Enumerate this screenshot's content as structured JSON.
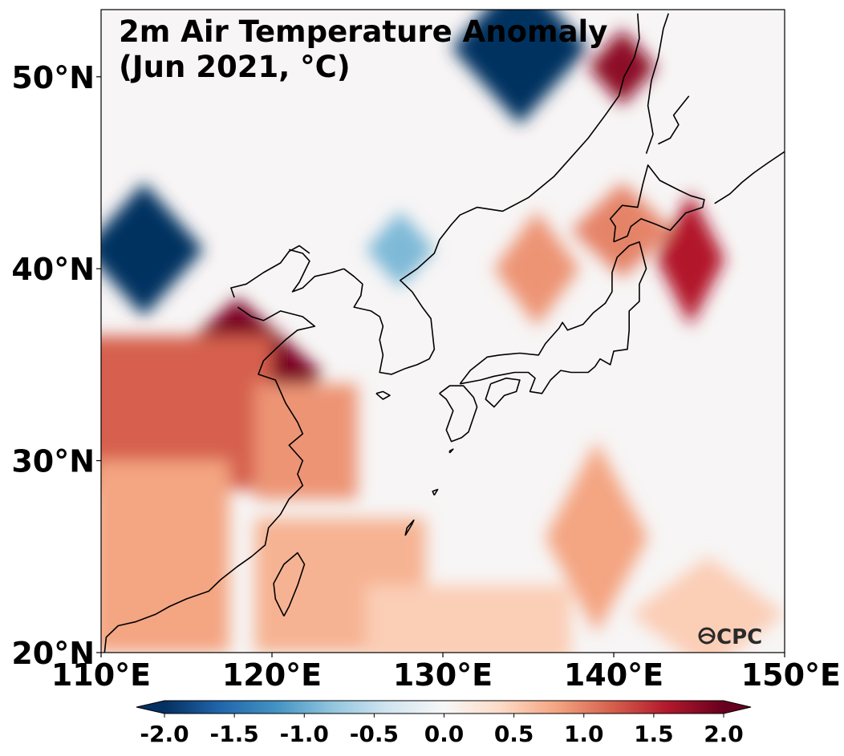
{
  "map": {
    "title_lines": [
      "2m Air Temperature Anomaly",
      "(Jun 2021, °C)"
    ],
    "logo": "CPC",
    "extent": {
      "lon": [
        110,
        150
      ],
      "lat": [
        20,
        53.5
      ]
    },
    "lat_ticks": [
      {
        "value": 20,
        "label": "20°N"
      },
      {
        "value": 30,
        "label": "30°N"
      },
      {
        "value": 40,
        "label": "40°N"
      },
      {
        "value": 50,
        "label": "50°N"
      }
    ],
    "lon_ticks": [
      {
        "value": 110,
        "label": "110°E"
      },
      {
        "value": 120,
        "label": "120°E"
      },
      {
        "value": 130,
        "label": "130°E"
      },
      {
        "value": 140,
        "label": "140°E"
      },
      {
        "value": 150,
        "label": "150°E"
      }
    ],
    "colorbar": {
      "min": -2.0,
      "max": 2.0,
      "ticks": [
        "-2.0",
        "-1.5",
        "-1.0",
        "-0.5",
        "0.0",
        "0.5",
        "1.0",
        "1.5",
        "2.0"
      ],
      "colors": [
        "#053061",
        "#2166ac",
        "#4393c3",
        "#92c5de",
        "#d1e5f0",
        "#f7f7f7",
        "#fddbc7",
        "#f4a582",
        "#d6604d",
        "#b2182b",
        "#67001f"
      ]
    },
    "anomaly_features": [
      {
        "lon": 134.5,
        "lat": 51.5,
        "value": -2.0,
        "kind": "diamond",
        "rlon": 4.0,
        "rlat": 4.0
      },
      {
        "lon": 112.5,
        "lat": 41.0,
        "value": -2.0,
        "kind": "diamond",
        "rlon": 3.5,
        "rlat": 3.5
      },
      {
        "lon": 127.5,
        "lat": 41.0,
        "value": -0.9,
        "kind": "diamond",
        "rlon": 2.0,
        "rlat": 2.0
      },
      {
        "lon": 140.5,
        "lat": 50.5,
        "value": 1.8,
        "kind": "diamond",
        "rlon": 2.0,
        "rlat": 2.0
      },
      {
        "lon": 144.5,
        "lat": 40.5,
        "value": 1.6,
        "kind": "diamond",
        "rlon": 2.0,
        "rlat": 3.5
      },
      {
        "lon": 140.5,
        "lat": 42.0,
        "value": 1.0,
        "kind": "diamond",
        "rlon": 3.0,
        "rlat": 2.5
      },
      {
        "lon": 135.5,
        "lat": 40.0,
        "value": 0.9,
        "kind": "diamond",
        "rlon": 2.5,
        "rlat": 3.0
      },
      {
        "lon": 118.0,
        "lat": 34.5,
        "value": 1.9,
        "kind": "diamond",
        "rlon": 5.0,
        "rlat": 4.0
      },
      {
        "lon": 114.0,
        "lat": 32.5,
        "value": 1.2,
        "kind": "rect",
        "w": 12,
        "h": 8
      },
      {
        "lon": 122.0,
        "lat": 31.0,
        "value": 0.9,
        "kind": "rect",
        "w": 6,
        "h": 6
      },
      {
        "lon": 113.5,
        "lat": 25.0,
        "value": 0.8,
        "kind": "rect",
        "w": 8,
        "h": 10
      },
      {
        "lon": 124.0,
        "lat": 23.5,
        "value": 0.7,
        "kind": "rect",
        "w": 10,
        "h": 7
      },
      {
        "lon": 139.0,
        "lat": 26.0,
        "value": 0.8,
        "kind": "diamond",
        "rlon": 3.0,
        "rlat": 5.0
      },
      {
        "lon": 145.5,
        "lat": 22.0,
        "value": 0.5,
        "kind": "diamond",
        "rlon": 4.5,
        "rlat": 3.0
      },
      {
        "lon": 131.5,
        "lat": 21.5,
        "value": 0.5,
        "kind": "rect",
        "w": 12,
        "h": 4
      }
    ],
    "coastlines": [
      [
        [
          118.0,
          38.0
        ],
        [
          118.8,
          37.5
        ],
        [
          119.5,
          37.3
        ],
        [
          120.5,
          37.8
        ],
        [
          121.8,
          37.5
        ],
        [
          122.5,
          37.0
        ],
        [
          121.5,
          36.8
        ],
        [
          120.8,
          36.3
        ],
        [
          120.2,
          35.8
        ],
        [
          119.5,
          35.2
        ],
        [
          119.2,
          34.5
        ],
        [
          120.2,
          34.2
        ],
        [
          120.8,
          33.0
        ],
        [
          121.5,
          32.0
        ],
        [
          121.8,
          31.4
        ],
        [
          121.0,
          30.8
        ],
        [
          121.8,
          30.0
        ],
        [
          121.5,
          29.3
        ],
        [
          121.8,
          28.7
        ],
        [
          121.0,
          28.0
        ],
        [
          120.5,
          27.2
        ],
        [
          119.8,
          26.5
        ],
        [
          119.6,
          25.6
        ],
        [
          118.8,
          25.0
        ],
        [
          118.0,
          24.5
        ],
        [
          117.0,
          23.8
        ],
        [
          116.3,
          23.2
        ],
        [
          115.0,
          22.8
        ],
        [
          114.0,
          22.4
        ],
        [
          113.2,
          22.0
        ],
        [
          112.0,
          21.6
        ],
        [
          111.0,
          21.4
        ],
        [
          110.3,
          20.8
        ],
        [
          110.2,
          20.0
        ]
      ],
      [
        [
          121.0,
          41.0
        ],
        [
          121.8,
          40.8
        ],
        [
          122.2,
          40.4
        ],
        [
          121.6,
          39.3
        ],
        [
          121.2,
          38.8
        ],
        [
          121.8,
          39.0
        ],
        [
          122.5,
          39.6
        ],
        [
          123.5,
          39.8
        ],
        [
          124.2,
          40.0
        ]
      ],
      [
        [
          117.8,
          38.5
        ],
        [
          117.6,
          39.0
        ],
        [
          118.5,
          39.2
        ],
        [
          119.5,
          39.8
        ],
        [
          120.5,
          40.3
        ],
        [
          121.0,
          40.9
        ],
        [
          121.6,
          41.2
        ],
        [
          122.2,
          40.8
        ]
      ],
      [
        [
          124.2,
          40.0
        ],
        [
          124.8,
          39.6
        ],
        [
          125.3,
          39.2
        ],
        [
          125.2,
          38.6
        ],
        [
          124.8,
          38.0
        ],
        [
          125.8,
          37.8
        ],
        [
          126.3,
          37.5
        ],
        [
          126.5,
          37.0
        ],
        [
          126.3,
          36.3
        ],
        [
          126.5,
          35.5
        ],
        [
          126.3,
          34.6
        ],
        [
          127.0,
          34.5
        ],
        [
          127.8,
          34.8
        ],
        [
          128.5,
          35.0
        ],
        [
          129.2,
          35.3
        ],
        [
          129.5,
          35.8
        ],
        [
          129.4,
          36.6
        ],
        [
          129.3,
          37.4
        ],
        [
          128.8,
          38.0
        ],
        [
          128.2,
          38.8
        ],
        [
          127.5,
          39.4
        ],
        [
          128.5,
          40.0
        ],
        [
          129.5,
          40.8
        ],
        [
          129.8,
          41.5
        ],
        [
          130.5,
          42.3
        ],
        [
          131.0,
          42.8
        ],
        [
          132.0,
          43.2
        ],
        [
          133.5,
          43.0
        ],
        [
          135.0,
          43.7
        ],
        [
          136.5,
          44.8
        ],
        [
          137.5,
          45.8
        ],
        [
          138.5,
          46.8
        ],
        [
          139.5,
          48.0
        ],
        [
          140.3,
          49.0
        ],
        [
          140.6,
          50.0
        ],
        [
          141.2,
          51.0
        ],
        [
          141.5,
          52.0
        ],
        [
          141.4,
          53.3
        ]
      ],
      [
        [
          129.8,
          33.5
        ],
        [
          130.4,
          33.9
        ],
        [
          131.2,
          33.9
        ],
        [
          131.8,
          33.3
        ],
        [
          132.0,
          32.8
        ],
        [
          131.5,
          31.5
        ],
        [
          131.1,
          31.2
        ],
        [
          130.5,
          31.0
        ],
        [
          130.2,
          31.6
        ],
        [
          130.6,
          32.6
        ],
        [
          130.2,
          33.2
        ],
        [
          129.8,
          33.5
        ]
      ],
      [
        [
          131.0,
          34.0
        ],
        [
          132.2,
          34.2
        ],
        [
          133.0,
          34.4
        ],
        [
          134.2,
          34.6
        ],
        [
          135.0,
          34.6
        ],
        [
          135.4,
          34.3
        ],
        [
          135.1,
          33.6
        ],
        [
          135.8,
          33.5
        ],
        [
          136.3,
          34.2
        ],
        [
          136.9,
          34.7
        ],
        [
          137.5,
          34.6
        ],
        [
          138.5,
          34.6
        ],
        [
          138.9,
          34.9
        ],
        [
          139.2,
          35.3
        ],
        [
          139.8,
          35.0
        ],
        [
          140.0,
          35.7
        ],
        [
          140.8,
          35.8
        ],
        [
          140.9,
          36.8
        ],
        [
          140.9,
          37.8
        ],
        [
          141.5,
          38.3
        ],
        [
          141.5,
          39.2
        ],
        [
          141.9,
          40.0
        ],
        [
          141.5,
          41.4
        ],
        [
          140.9,
          41.2
        ],
        [
          140.2,
          40.6
        ],
        [
          139.9,
          39.8
        ],
        [
          139.9,
          38.8
        ],
        [
          139.5,
          38.2
        ],
        [
          138.8,
          37.7
        ],
        [
          138.2,
          37.1
        ],
        [
          137.3,
          36.8
        ],
        [
          137.0,
          37.2
        ],
        [
          136.8,
          36.9
        ],
        [
          136.0,
          36.1
        ],
        [
          135.6,
          35.5
        ],
        [
          134.5,
          35.6
        ],
        [
          133.3,
          35.5
        ],
        [
          132.6,
          35.4
        ],
        [
          131.6,
          34.7
        ],
        [
          131.0,
          34.0
        ]
      ],
      [
        [
          132.8,
          34.0
        ],
        [
          133.7,
          34.3
        ],
        [
          134.5,
          34.2
        ],
        [
          134.3,
          33.6
        ],
        [
          133.6,
          33.4
        ],
        [
          133.0,
          32.8
        ],
        [
          132.5,
          33.2
        ],
        [
          132.8,
          34.0
        ]
      ],
      [
        [
          140.0,
          41.4
        ],
        [
          140.1,
          42.2
        ],
        [
          139.8,
          42.6
        ],
        [
          140.5,
          43.3
        ],
        [
          141.4,
          43.2
        ],
        [
          141.7,
          44.4
        ],
        [
          142.0,
          45.4
        ],
        [
          142.7,
          44.6
        ],
        [
          143.8,
          44.1
        ],
        [
          144.5,
          43.8
        ],
        [
          145.3,
          43.6
        ],
        [
          145.2,
          43.2
        ],
        [
          144.2,
          42.9
        ],
        [
          143.3,
          42.0
        ],
        [
          142.5,
          42.3
        ],
        [
          141.6,
          42.6
        ],
        [
          141.0,
          42.2
        ],
        [
          140.8,
          41.7
        ],
        [
          140.0,
          41.4
        ]
      ],
      [
        [
          120.7,
          21.9
        ],
        [
          120.2,
          22.8
        ],
        [
          120.1,
          23.6
        ],
        [
          120.7,
          24.6
        ],
        [
          121.5,
          25.2
        ],
        [
          121.9,
          24.6
        ],
        [
          121.5,
          23.5
        ],
        [
          121.0,
          22.4
        ],
        [
          120.7,
          21.9
        ]
      ],
      [
        [
          126.1,
          33.5
        ],
        [
          126.5,
          33.6
        ],
        [
          126.9,
          33.4
        ],
        [
          126.5,
          33.2
        ],
        [
          126.1,
          33.5
        ]
      ],
      [
        [
          141.9,
          46.0
        ],
        [
          142.3,
          47.0
        ],
        [
          142.0,
          48.5
        ],
        [
          142.2,
          49.8
        ],
        [
          142.6,
          51.0
        ],
        [
          142.9,
          52.5
        ],
        [
          143.2,
          53.3
        ]
      ],
      [
        [
          142.6,
          46.5
        ],
        [
          143.3,
          46.8
        ],
        [
          143.8,
          47.5
        ],
        [
          143.5,
          48.0
        ],
        [
          144.4,
          49.0
        ]
      ],
      [
        [
          145.9,
          43.4
        ],
        [
          146.8,
          43.9
        ],
        [
          147.5,
          44.5
        ],
        [
          148.2,
          45.0
        ],
        [
          149.0,
          45.5
        ],
        [
          150.0,
          46.1
        ]
      ],
      [
        [
          127.8,
          26.1
        ],
        [
          128.2,
          26.7
        ],
        [
          128.3,
          26.9
        ],
        [
          127.9,
          26.5
        ],
        [
          127.8,
          26.1
        ]
      ],
      [
        [
          129.5,
          28.2
        ],
        [
          129.7,
          28.5
        ],
        [
          129.4,
          28.4
        ],
        [
          129.5,
          28.2
        ]
      ],
      [
        [
          130.4,
          30.4
        ],
        [
          130.6,
          30.6
        ],
        [
          130.4,
          30.5
        ],
        [
          130.4,
          30.4
        ]
      ]
    ]
  }
}
